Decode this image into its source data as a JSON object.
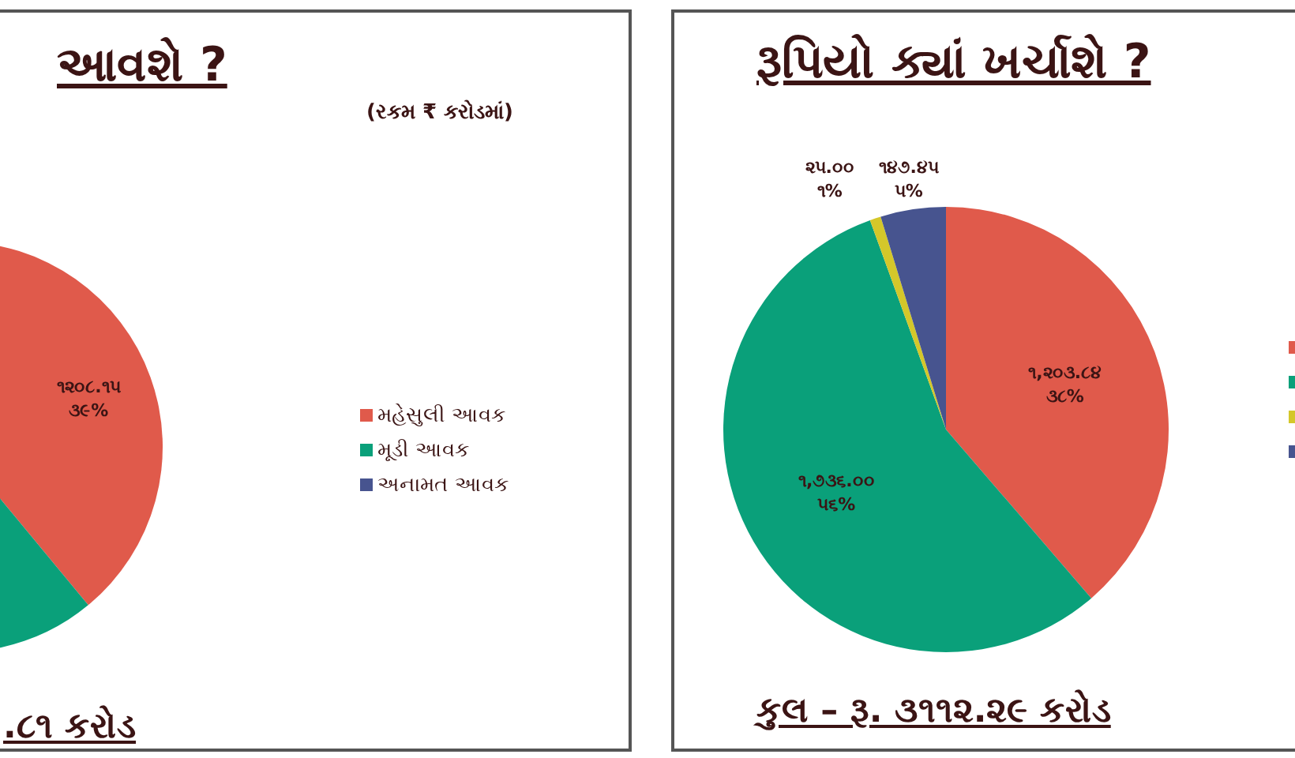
{
  "chart_data": [
    {
      "type": "pie",
      "title": "આવશે ?",
      "subtitle": "(રકમ ₹ કરોડમાં)",
      "categories": [
        "મહેસુલી આવક",
        "મૂડી આવક",
        "અનામત આવક"
      ],
      "values": [
        1208.15,
        1890,
        null
      ],
      "colors": [
        "#e05a4b",
        "#0aa07a",
        "#47548f"
      ],
      "value_labels": [
        "૧૨૦૮.૧૫\n૩૯%",
        null,
        null
      ],
      "legend": "right",
      "annotations": [
        ".૮૧ કરોડ"
      ]
    },
    {
      "type": "pie",
      "title": "રૂપિયો ક્યાં ખર્ચાશે ?",
      "categories": [
        null,
        null,
        null,
        null
      ],
      "values": [
        1203.84,
        1736.0,
        25.0,
        147.45
      ],
      "colors": [
        "#e05a4b",
        "#0aa07a",
        "#d4c72a",
        "#47548f"
      ],
      "value_labels": [
        "૧,૨૦૩.૮૪\n૩૮%",
        "૧,૭૩૬.૦૦\n૫૬%",
        "૨૫.૦૦\n૧%",
        "૧૪૭.૪૫\n૫%"
      ],
      "annotations": [
        "કુલ – રૂ. ૩૧૧૨.૨૯ કરોડ"
      ]
    }
  ]
}
